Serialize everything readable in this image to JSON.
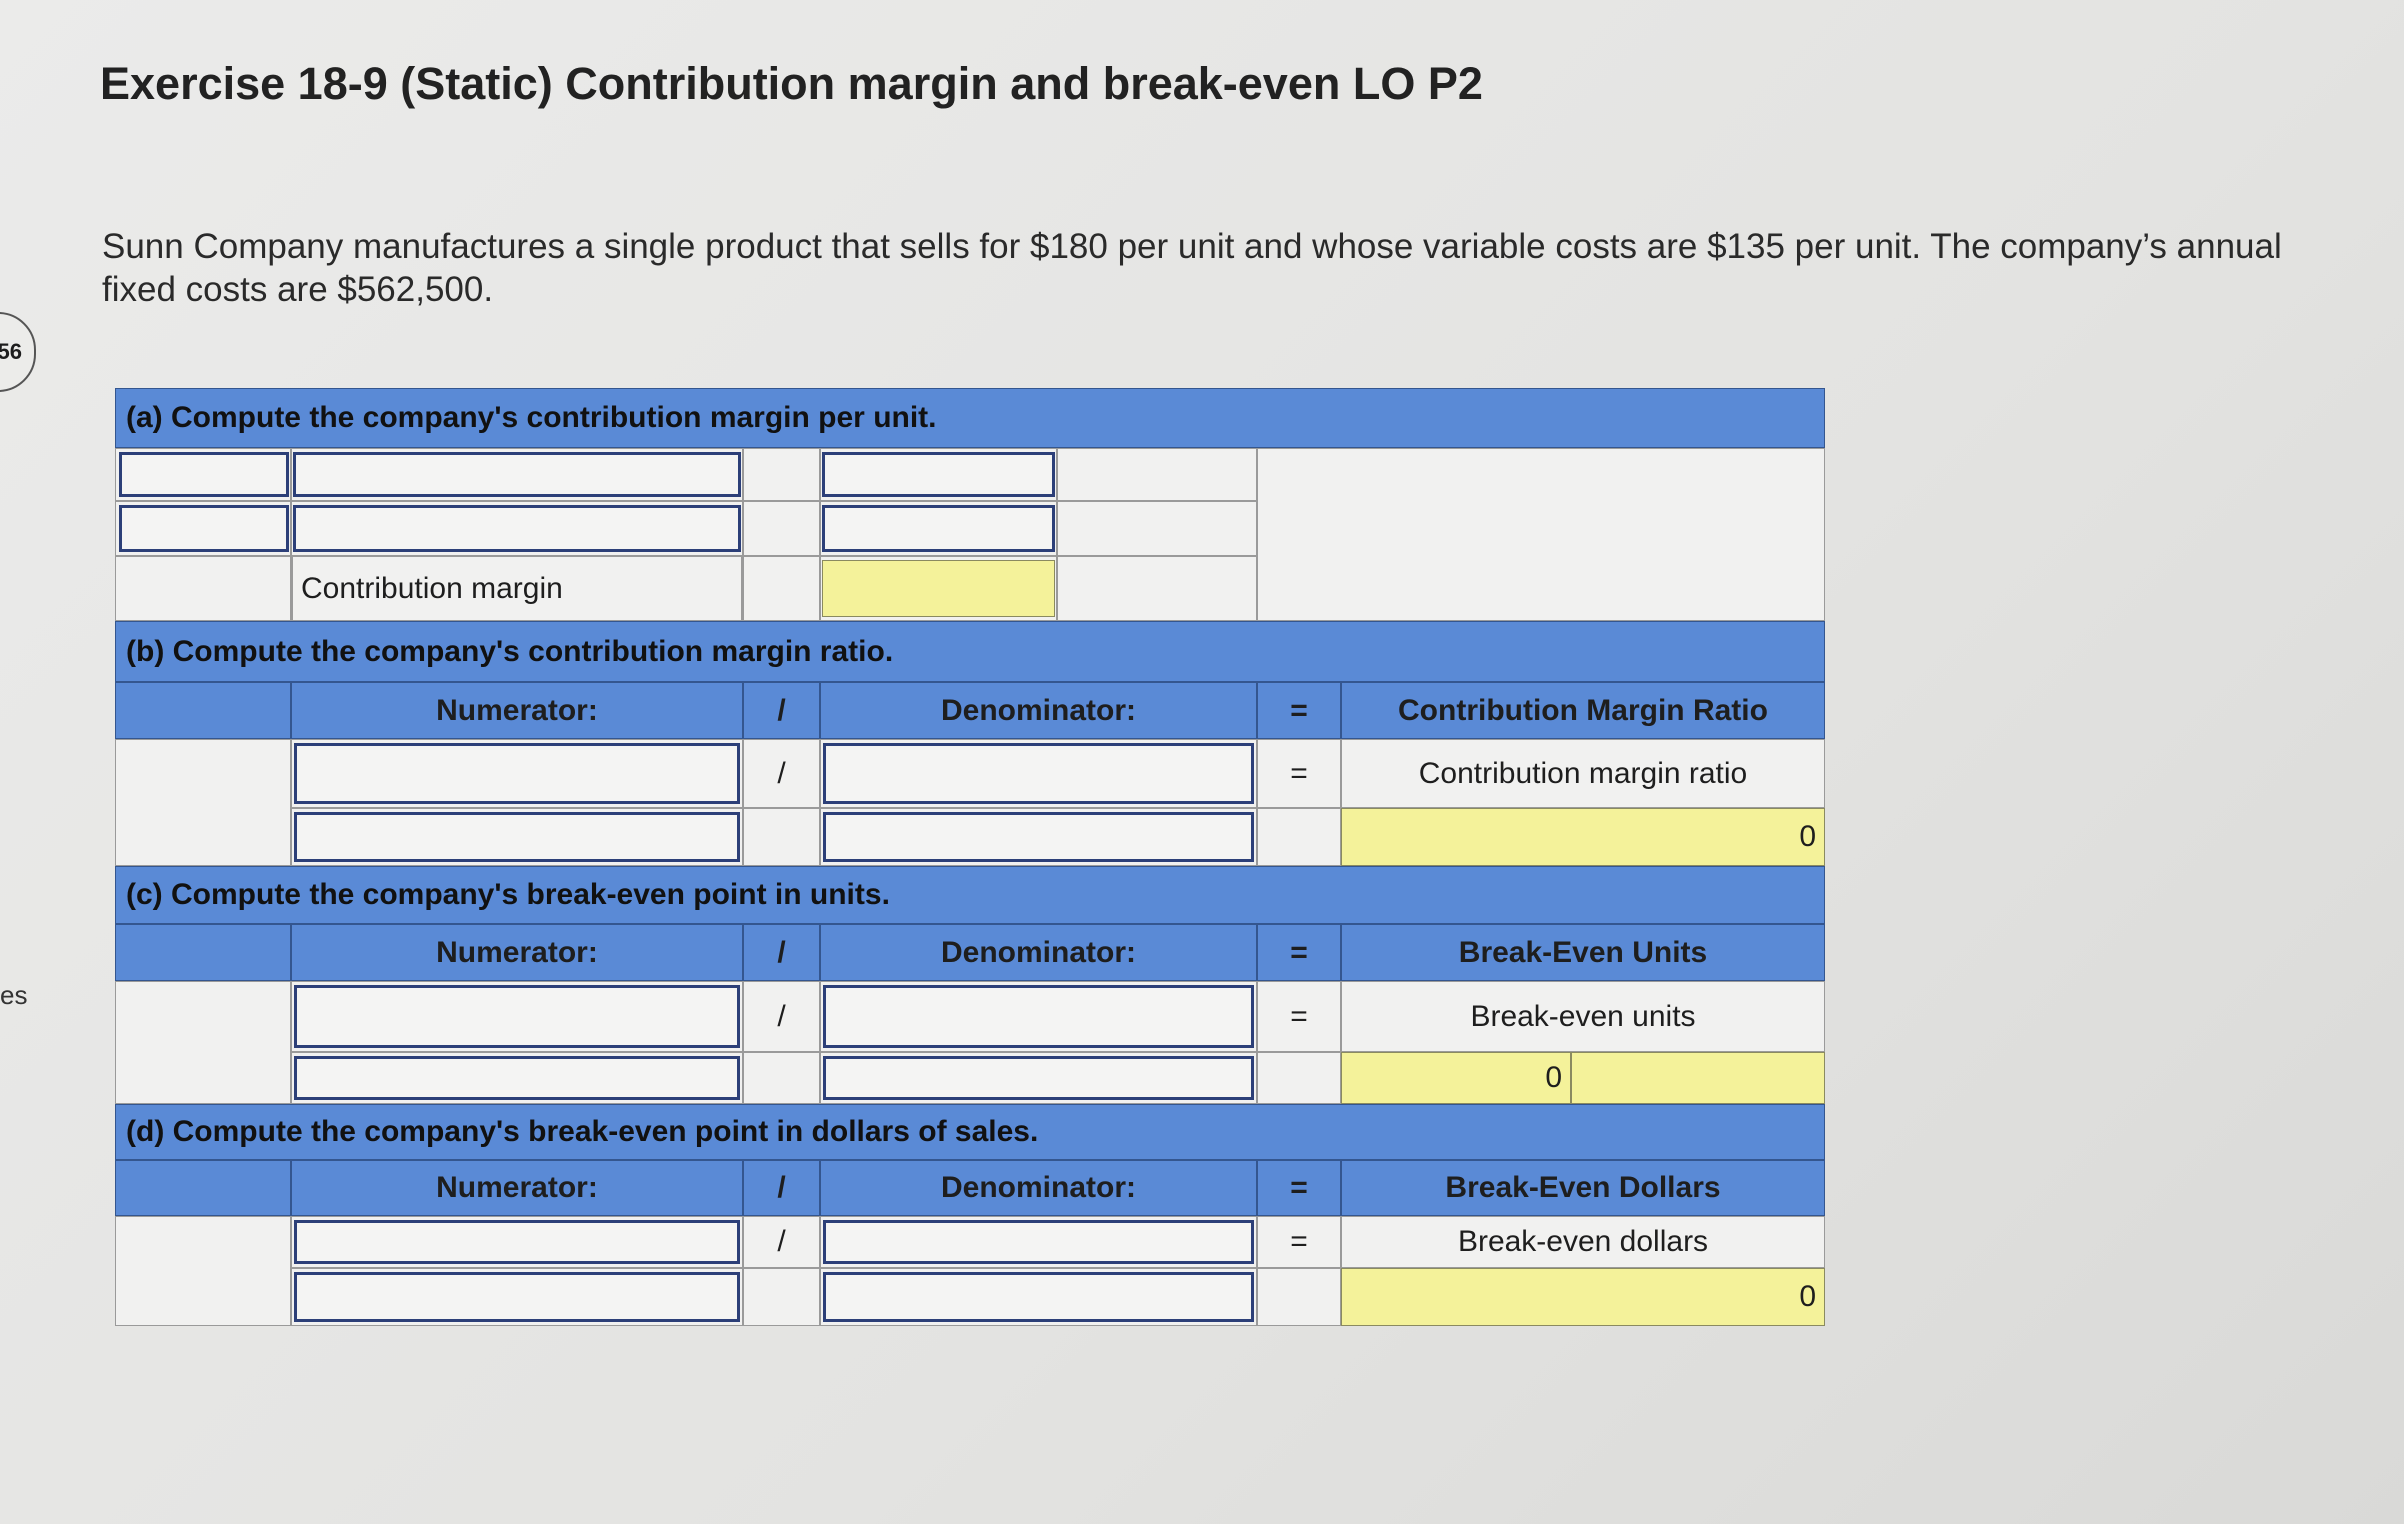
{
  "sidebar": {
    "badge": "56",
    "label": "es"
  },
  "title": "Exercise 18-9 (Static) Contribution margin and break-even LO P2",
  "problem": "Sunn Company manufactures a single product that sells for $180 per unit and whose variable costs are $135 per unit. The company’s annual fixed costs are $562,500.",
  "parts": [
    {
      "header": "(a) Compute the company's contribution margin per unit.",
      "row_label": "Contribution margin"
    },
    {
      "header": "(b) Compute the company's contribution margin ratio.",
      "numerator": "Numerator:",
      "divide": "/",
      "denominator": "Denominator:",
      "equals": "=",
      "result_header": "Contribution Margin Ratio",
      "result_label": "Contribution margin ratio",
      "result_value": 0
    },
    {
      "header": "(c) Compute the company's break-even point in units.",
      "numerator": "Numerator:",
      "divide": "/",
      "denominator": "Denominator:",
      "equals": "=",
      "result_header": "Break-Even Units",
      "result_label": "Break-even units",
      "result_value": 0
    },
    {
      "header": "(d) Compute the company's break-even point in dollars of sales.",
      "numerator": "Numerator:",
      "divide": "/",
      "denominator": "Denominator:",
      "equals": "=",
      "result_header": "Break-Even Dollars",
      "result_label": "Break-even dollars",
      "result_value": 0
    }
  ]
}
